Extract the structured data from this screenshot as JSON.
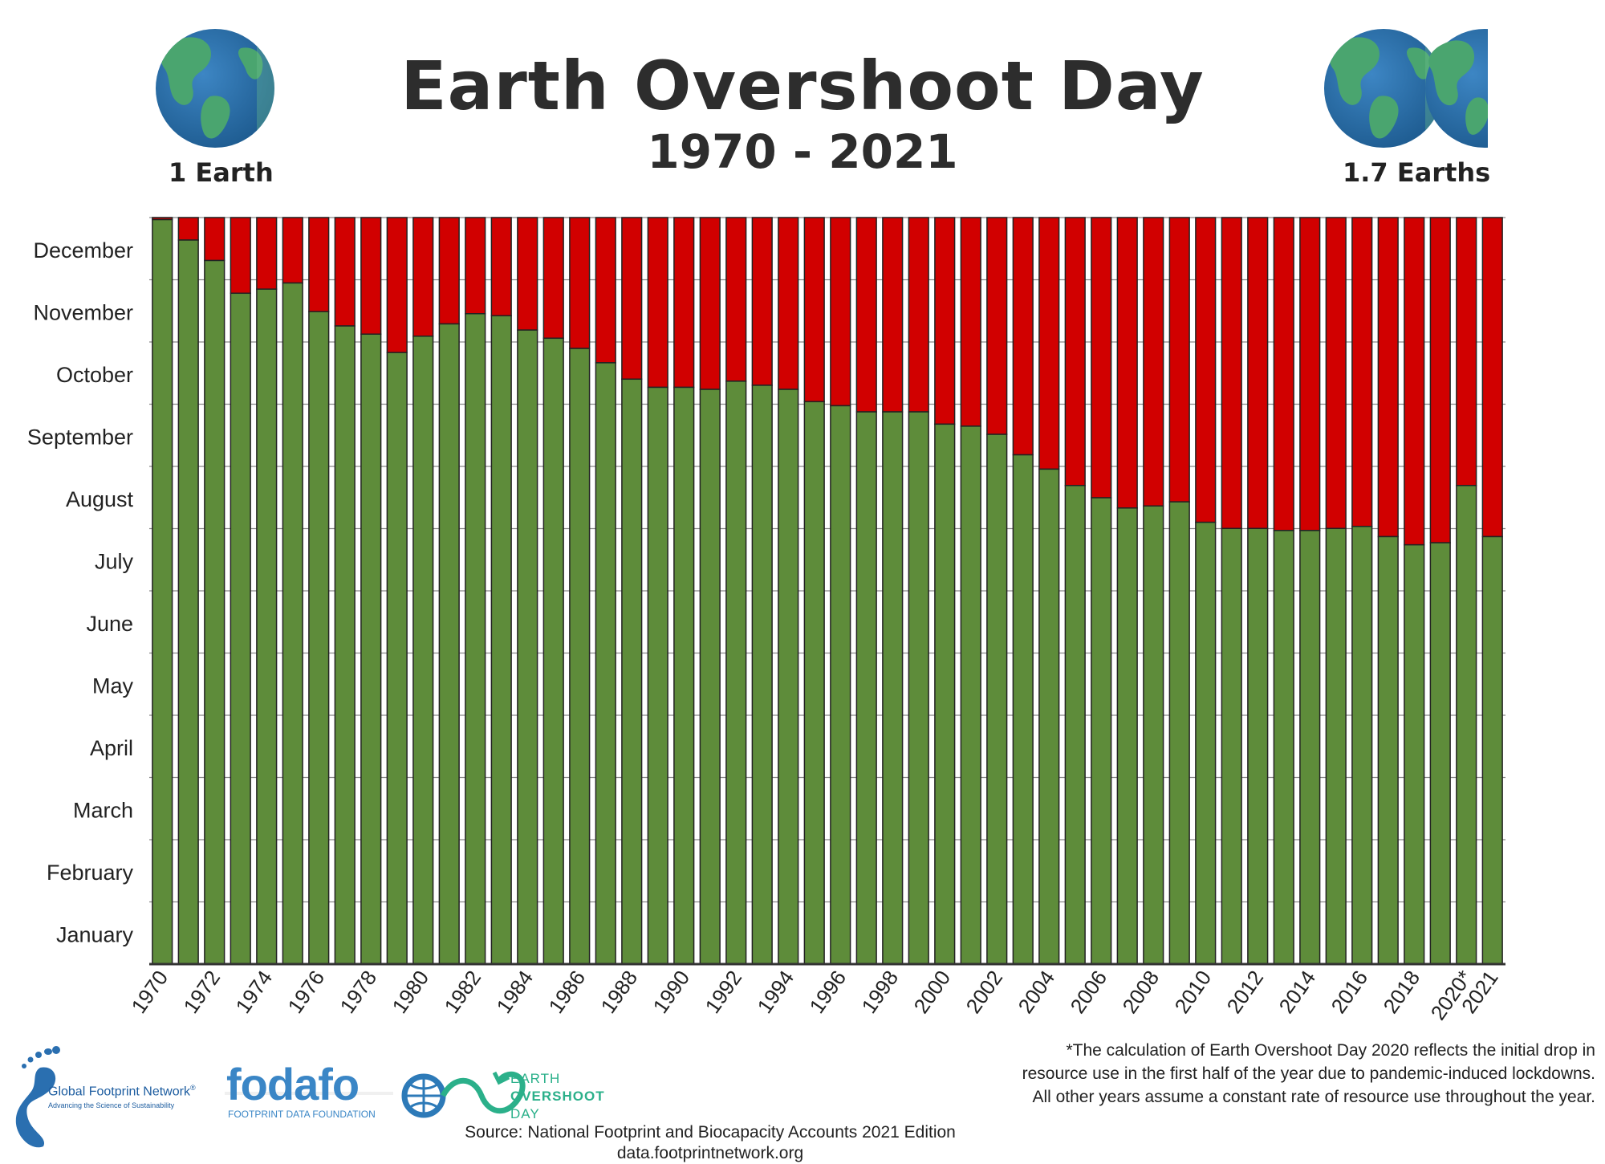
{
  "header": {
    "title": "Earth Overshoot Day",
    "subtitle": "1970 - 2021",
    "left_label": "1 Earth",
    "right_label": "1.7 Earths"
  },
  "colors": {
    "green": "#5e8c3a",
    "red": "#d10000",
    "axis": "#333333"
  },
  "chart_data": {
    "type": "bar",
    "stacked": true,
    "ylabels": [
      "December",
      "November",
      "October",
      "September",
      "August",
      "July",
      "June",
      "May",
      "April",
      "March",
      "February",
      "January"
    ],
    "ylim": [
      0,
      365
    ],
    "grid": true,
    "categories": [
      "1970",
      "1971",
      "1972",
      "1973",
      "1974",
      "1975",
      "1976",
      "1977",
      "1978",
      "1979",
      "1980",
      "1981",
      "1982",
      "1983",
      "1984",
      "1985",
      "1986",
      "1987",
      "1988",
      "1989",
      "1990",
      "1991",
      "1992",
      "1993",
      "1994",
      "1995",
      "1996",
      "1997",
      "1998",
      "1999",
      "2000",
      "2001",
      "2002",
      "2003",
      "2004",
      "2005",
      "2006",
      "2007",
      "2008",
      "2009",
      "2010",
      "2011",
      "2012",
      "2013",
      "2014",
      "2015",
      "2016",
      "2017",
      "2018",
      "2019",
      "2020",
      "2021"
    ],
    "tick_labels": [
      "1970",
      "1972",
      "1974",
      "1976",
      "1978",
      "1980",
      "1982",
      "1984",
      "1986",
      "1988",
      "1990",
      "1992",
      "1994",
      "1996",
      "1998",
      "2000",
      "2002",
      "2004",
      "2006",
      "2008",
      "2010",
      "2012",
      "2014",
      "2016",
      "2018",
      "2020*",
      "2021"
    ],
    "values": [
      364,
      354,
      344,
      328,
      330,
      333,
      319,
      312,
      308,
      299,
      307,
      313,
      318,
      317,
      310,
      306,
      301,
      294,
      286,
      282,
      282,
      281,
      285,
      283,
      281,
      275,
      273,
      270,
      270,
      270,
      264,
      263,
      259,
      249,
      242,
      234,
      228,
      223,
      224,
      226,
      216,
      213,
      213,
      212,
      212,
      213,
      214,
      209,
      205,
      206,
      234,
      209
    ]
  },
  "footer": {
    "footnote_lines": [
      "*The calculation of Earth Overshoot Day 2020 reflects the initial drop in",
      "resource use in the first half of the year due to pandemic-induced lockdowns.",
      "All other years assume a constant rate of resource use throughout the year."
    ],
    "source_line": "Source: National Footprint and Biocapacity Accounts 2021 Edition",
    "source_url": "data.footprintnetwork.org"
  },
  "logos": {
    "gfn_name": "Global Footprint Network",
    "gfn_reg": "®",
    "gfn_tagline": "Advancing the Science of Sustainability",
    "fodafo_name": "fodafo",
    "fodafo_tagline": "FOOTPRINT DATA FOUNDATION",
    "eod_line1": "EARTH",
    "eod_line2": "OVERSHOOT",
    "eod_line3": "DAY"
  }
}
